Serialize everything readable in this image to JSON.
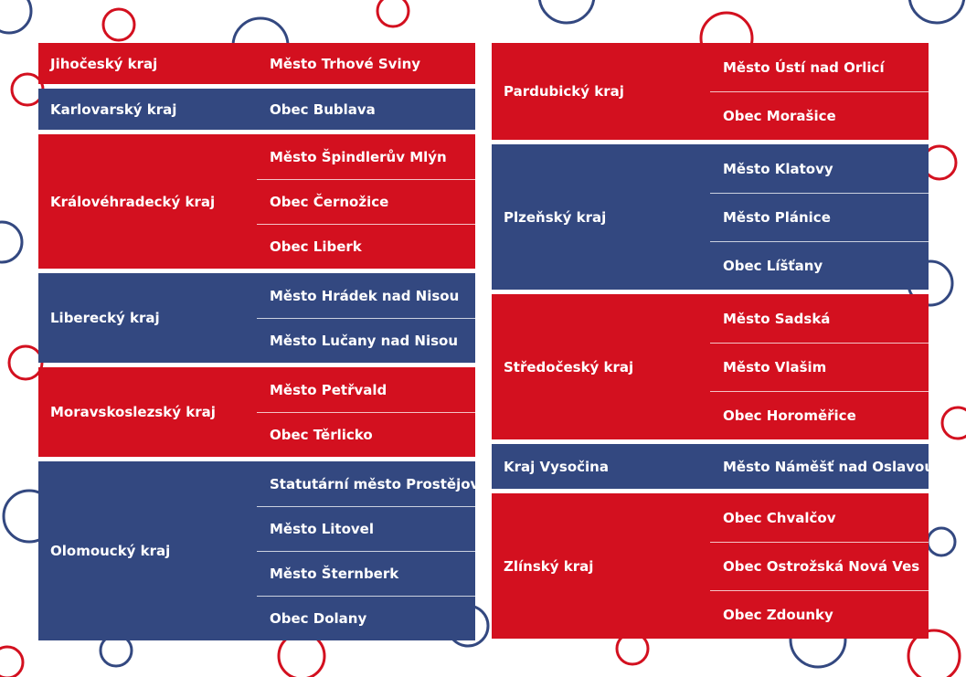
{
  "colors": {
    "red": "#d3101f",
    "blue": "#334880",
    "text": "#ffffff"
  },
  "left_column": [
    {
      "region": "Jihočeský kraj",
      "color": "red",
      "towns": [
        "Město Trhové Sviny"
      ]
    },
    {
      "region": "Karlovarský kraj",
      "color": "blue",
      "towns": [
        "Obec Bublava"
      ]
    },
    {
      "region": "Královéhradecký kraj",
      "color": "red",
      "towns": [
        "Město Špindlerův Mlýn",
        "Obec Černožice",
        "Obec Liberk"
      ]
    },
    {
      "region": "Liberecký kraj",
      "color": "blue",
      "towns": [
        "Město Hrádek nad Nisou",
        "Město Lučany nad Nisou"
      ]
    },
    {
      "region": "Moravskoslezský kraj",
      "color": "red",
      "towns": [
        "Město Petřvald",
        "Obec Těrlicko"
      ]
    },
    {
      "region": "Olomoucký kraj",
      "color": "blue",
      "towns": [
        "Statutární město Prostějov",
        "Město Litovel",
        "Město Šternberk",
        "Obec Dolany"
      ]
    }
  ],
  "right_column": [
    {
      "region": "Pardubický kraj",
      "color": "red",
      "towns": [
        "Město Ústí nad Orlicí",
        "Obec Morašice"
      ]
    },
    {
      "region": "Plzeňský kraj",
      "color": "blue",
      "towns": [
        "Město Klatovy",
        "Město Plánice",
        "Obec Líšťany"
      ]
    },
    {
      "region": "Středočeský kraj",
      "color": "red",
      "towns": [
        "Město Sadská",
        "Město Vlašim",
        "Obec Horoměřice"
      ]
    },
    {
      "region": "Kraj Vysočina",
      "color": "blue",
      "towns": [
        "Město Náměšť nad Oslavou"
      ]
    },
    {
      "region": "Zlínský kraj",
      "color": "red",
      "towns": [
        "Obec Chvalčov",
        "Obec Ostrožská Nová Ves",
        "Obec Zdounky"
      ]
    }
  ]
}
